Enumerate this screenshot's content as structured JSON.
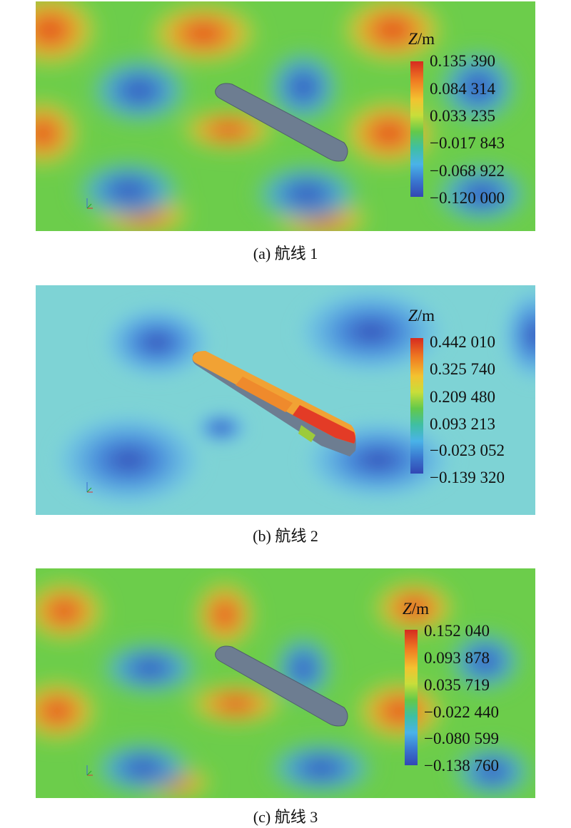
{
  "panels": [
    {
      "caption": "(a) 航线 1",
      "legend_title_var": "Z",
      "legend_title_unit": "/m",
      "ticks": [
        "0.135 390",
        "0.084 314",
        "0.033 235",
        "−0.017 843",
        "−0.068 922",
        "−0.120 000"
      ]
    },
    {
      "caption": "(b) 航线 2",
      "legend_title_var": "Z",
      "legend_title_unit": "/m",
      "ticks": [
        "0.442 010",
        "0.325 740",
        "0.209 480",
        "0.093 213",
        "−0.023 052",
        "−0.139 320"
      ]
    },
    {
      "caption": "(c) 航线 3",
      "legend_title_var": "Z",
      "legend_title_unit": "/m",
      "ticks": [
        "0.152 040",
        "0.093 878",
        "0.035 719",
        "−0.022 440",
        "−0.080 599",
        "−0.138 760"
      ]
    }
  ],
  "colors": {
    "high": "#d62b1f",
    "mid": "#63c94a",
    "low": "#3247b4",
    "ship": "#6f7f92"
  }
}
